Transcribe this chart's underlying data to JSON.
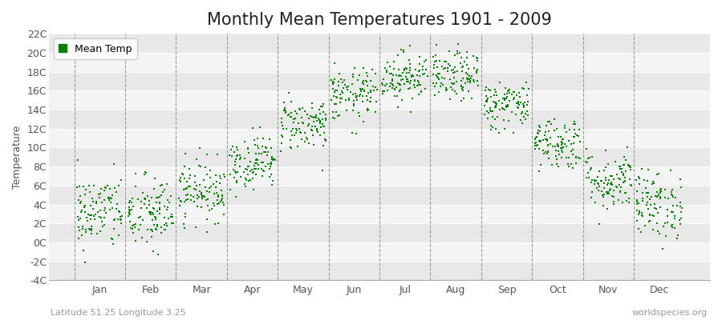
{
  "title": "Monthly Mean Temperatures 1901 - 2009",
  "ylabel": "Temperature",
  "xlabel_labels": [
    "Jan",
    "Feb",
    "Mar",
    "Apr",
    "May",
    "Jun",
    "Jul",
    "Aug",
    "Sep",
    "Oct",
    "Nov",
    "Dec"
  ],
  "bottom_left": "Latitude 51.25 Longitude 3.25",
  "bottom_right": "worldspecies.org",
  "ylim": [
    -4,
    22
  ],
  "yticks": [
    -4,
    -2,
    0,
    2,
    4,
    6,
    8,
    10,
    12,
    14,
    16,
    18,
    20,
    22
  ],
  "ytick_labels": [
    "-4C",
    "-2C",
    "0C",
    "2C",
    "4C",
    "6C",
    "8C",
    "10C",
    "12C",
    "14C",
    "16C",
    "18C",
    "20C",
    "22C"
  ],
  "dot_color": "#008000",
  "bg_color": "#ffffff",
  "plot_bg_color": "#f0f0f0",
  "band_color1": "#e8e8e8",
  "band_color2": "#f4f4f4",
  "dashed_color": "#999999",
  "legend_label": "Mean Temp",
  "title_fontsize": 15,
  "label_fontsize": 9,
  "monthly_means": [
    3.2,
    3.0,
    5.5,
    8.5,
    12.5,
    15.5,
    17.5,
    17.5,
    14.5,
    10.5,
    6.5,
    4.0
  ],
  "monthly_stds": [
    2.0,
    2.0,
    1.6,
    1.4,
    1.4,
    1.4,
    1.3,
    1.3,
    1.3,
    1.4,
    1.6,
    1.8
  ],
  "n_years": 109
}
